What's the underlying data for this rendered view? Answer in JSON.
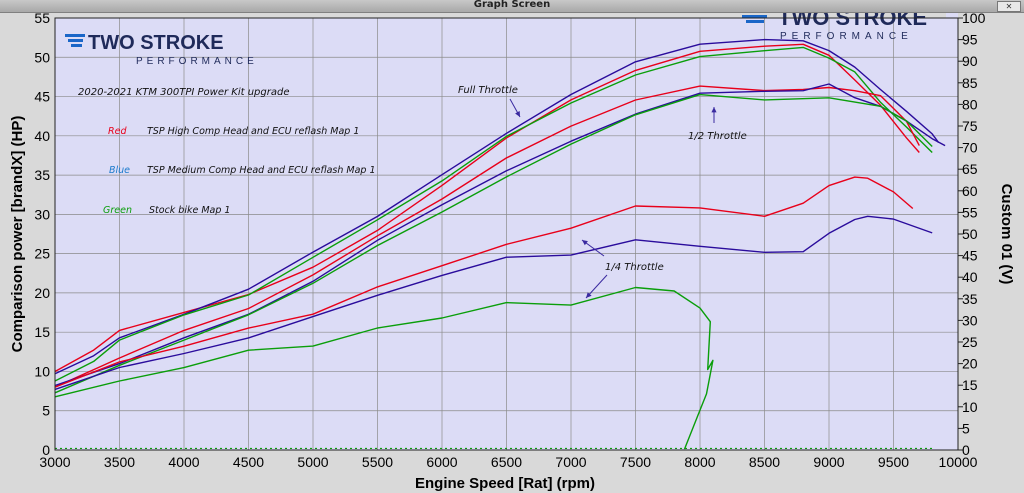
{
  "window": {
    "title": "Graph Screen",
    "close_label": "✕"
  },
  "logo": {
    "brand": "TWO STROKE",
    "sub": "PERFORMANCE",
    "brand_right": "TWO STROKE",
    "sub_right": "PERFORMANCE"
  },
  "colors": {
    "plot_bg": "#dcdcf6",
    "red": "#e8001a",
    "blue": "#2a0c9c",
    "green": "#0a9e0a",
    "grid": "#8a8a8a"
  },
  "chart_data": {
    "type": "line",
    "title": "2020-2021 KTM 300TPI Power Kit upgrade",
    "xlabel": "Engine Speed [Rat] (rpm)",
    "ylabel": "Comparison power [brandX] (HP)",
    "y2label": "Custom 01 (V)",
    "xlim": [
      3000,
      10000
    ],
    "ylim": [
      0,
      55
    ],
    "y2lim": [
      0,
      100
    ],
    "xticks": [
      3000,
      3500,
      4000,
      4500,
      5000,
      5500,
      6000,
      6500,
      7000,
      7500,
      8000,
      8500,
      9000,
      9500,
      10000
    ],
    "yticks": [
      0,
      5,
      10,
      15,
      20,
      25,
      30,
      35,
      40,
      45,
      50,
      55
    ],
    "y2ticks": [
      0,
      5,
      10,
      15,
      20,
      25,
      30,
      35,
      40,
      45,
      50,
      55,
      60,
      65,
      70,
      75,
      80,
      85,
      90,
      95,
      100
    ],
    "grid": true,
    "legend": [
      {
        "key": "Red",
        "text": "TSP High Comp Head and ECU reflash Map 1",
        "color": "red"
      },
      {
        "key": "Blue",
        "text": "TSP Medium Comp Head and ECU reflash Map 1",
        "color": "blue"
      },
      {
        "key": "Green",
        "text": "Stock bike Map 1",
        "color": "green"
      }
    ],
    "annotations": [
      {
        "text": "Full Throttle",
        "x": 7050,
        "y": 45.5
      },
      {
        "text": "1/2 Throttle",
        "x": 8000,
        "y": 50.5
      },
      {
        "text": "1/4 Throttle",
        "x": 8400,
        "y": 43.5
      }
    ],
    "series": [
      {
        "color": "red",
        "x": [
          3000,
          3300,
          3500,
          4000,
          4500,
          5000,
          5500,
          6000,
          6500,
          7000,
          7500,
          8000,
          8500,
          8800,
          9000,
          9200,
          9400,
          9600,
          9700
        ],
        "y": [
          10,
          12.5,
          15,
          17.5,
          20,
          23.5,
          28,
          33.5,
          39.5,
          44.5,
          48.5,
          51,
          51.5,
          51.5,
          50,
          47,
          44,
          40,
          38
        ]
      },
      {
        "color": "blue",
        "x": [
          3000,
          3300,
          3500,
          4000,
          4500,
          5000,
          5500,
          6000,
          6500,
          7000,
          7500,
          8000,
          8500,
          8800,
          9000,
          9200,
          9400,
          9600,
          9800,
          9850
        ],
        "y": [
          9.5,
          12,
          14.5,
          17.5,
          20.5,
          25,
          29.5,
          35,
          40.5,
          45.5,
          49.5,
          51.5,
          52,
          52,
          51,
          49,
          46,
          43,
          40,
          39
        ]
      },
      {
        "color": "green",
        "x": [
          3000,
          3300,
          3500,
          4000,
          4500,
          5000,
          5500,
          6000,
          6500,
          7000,
          7500,
          8000,
          8500,
          8800,
          9000,
          9200,
          9400,
          9600,
          9800
        ],
        "y": [
          9,
          11.5,
          14,
          17,
          19.5,
          24.5,
          29.5,
          34.5,
          40,
          44,
          47.5,
          50,
          51,
          51.5,
          50,
          48,
          44,
          41,
          38
        ]
      },
      {
        "color": "red",
        "x": [
          3000,
          3500,
          4000,
          4500,
          5000,
          5500,
          6000,
          6500,
          7000,
          7500,
          8000,
          8500,
          8800,
          9000,
          9200,
          9400,
          9600,
          9700
        ],
        "y": [
          8,
          11.5,
          15,
          18,
          22.5,
          27.5,
          32,
          37,
          41,
          44.5,
          46.5,
          46,
          46,
          46,
          45.5,
          45,
          42,
          39
        ]
      },
      {
        "color": "blue",
        "x": [
          3000,
          3500,
          4000,
          4500,
          5000,
          5500,
          6000,
          6500,
          7000,
          7500,
          8000,
          8500,
          8800,
          9000,
          9200,
          9400,
          9600,
          9800,
          9900
        ],
        "y": [
          8,
          11,
          14.5,
          17.5,
          21.5,
          26.5,
          31,
          35.5,
          39.5,
          43,
          45.5,
          45.5,
          45.5,
          46.5,
          45,
          44,
          42,
          39.5,
          38.5
        ]
      },
      {
        "color": "green",
        "x": [
          3000,
          3500,
          4000,
          4500,
          5000,
          5500,
          6000,
          6500,
          7000,
          7500,
          8000,
          8500,
          9000,
          9400,
          9600,
          9800
        ],
        "y": [
          7.5,
          11,
          14,
          17,
          21,
          26,
          30.5,
          35,
          39,
          42.5,
          45,
          44.5,
          45,
          44,
          42,
          38.5
        ]
      },
      {
        "color": "red",
        "x": [
          3000,
          3500,
          4000,
          4500,
          5000,
          5500,
          6000,
          6500,
          7000,
          7500,
          8000,
          8500,
          8800,
          9000,
          9200,
          9300,
          9500,
          9650
        ],
        "y": [
          8,
          11,
          13,
          15.5,
          17.5,
          21,
          23.5,
          26,
          28,
          31,
          31,
          30,
          31.5,
          33.5,
          34.5,
          34.5,
          33,
          31
        ]
      },
      {
        "color": "blue",
        "x": [
          3000,
          3500,
          4000,
          4500,
          5000,
          5500,
          6000,
          6500,
          7000,
          7500,
          8000,
          8500,
          8800,
          9000,
          9200,
          9300,
          9500,
          9800
        ],
        "y": [
          7.5,
          10.5,
          12.5,
          14.5,
          17,
          19.5,
          22,
          24.5,
          25,
          27,
          26,
          25,
          25,
          27.5,
          29.5,
          30,
          29.5,
          27.5
        ]
      },
      {
        "color": "green",
        "x": [
          3000,
          3500,
          4000,
          4500,
          5000,
          5500,
          6000,
          6500,
          7000,
          7500,
          7800,
          8000,
          8080,
          8060,
          8100,
          8050,
          7980,
          7880
        ],
        "y": [
          7,
          9,
          10.5,
          12.5,
          13,
          15.5,
          17,
          19,
          18.5,
          20.5,
          20,
          18,
          16.5,
          10.5,
          11.5,
          7,
          4,
          0
        ]
      }
    ]
  }
}
